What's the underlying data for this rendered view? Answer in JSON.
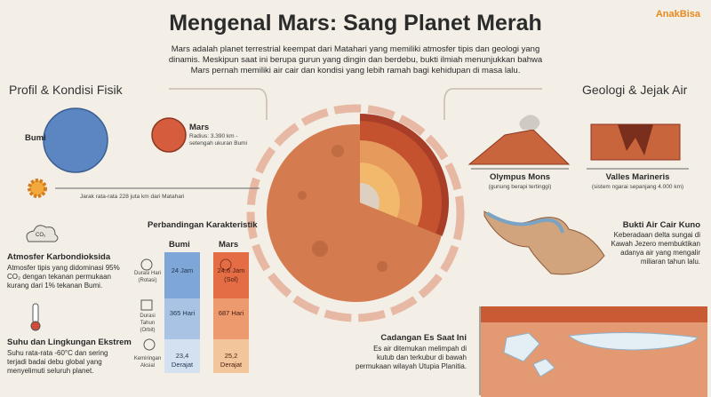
{
  "header": {
    "title": "Mengenal Mars: Sang Planet Merah",
    "logo": "AnakBisa",
    "intro": "Mars adalah planet terrestrial keempat dari Matahari yang memiliki atmosfer tipis dan geologi yang dinamis. Meskipun saat ini berupa gurun yang dingin dan berdebu, bukti ilmiah menunjukkan bahwa Mars pernah memiliki air cair dan kondisi yang lebih ramah bagi kehidupan di masa lalu."
  },
  "left": {
    "heading": "Profil & Kondisi Fisik",
    "earth_label": "Bumi",
    "mars_label": "Mars",
    "mars_radius": "Radius: 3.390 km - setengah ukuran Bumi",
    "distance": "Jarak rata-rata 228 juta km dari Matahari",
    "co2_icon": "CO₂",
    "atmosphere": {
      "title": "Atmosfer Karbondioksida",
      "text": "Atmosfer tipis yang didominasi 95% CO₂ dengan tekanan permukaan kurang dari 1% tekanan Bumi."
    },
    "temperature": {
      "title": "Suhu dan Lingkungan Ekstrem",
      "text": "Suhu rata-rata -60°C dan sering terjadi badai debu global yang menyelimuti seluruh planet."
    }
  },
  "comparison": {
    "title": "Perbandingan Karakteristik",
    "columns": [
      "Bumi",
      "Mars"
    ],
    "rows": [
      [
        "Durasi Hari (Rotasi)",
        "24 Jam",
        "24,6 Jam (Sol)"
      ],
      [
        "Durasi Tahun (Orbit)",
        "365 Hari",
        "687 Hari"
      ],
      [
        "Kemiringan Aksial",
        "23,4 Derajat",
        "25,2 Derajat"
      ]
    ]
  },
  "right": {
    "heading": "Geologi & Jejak Air",
    "olympus": {
      "title": "Olympus Mons",
      "text": "(gunung berapi tertinggi)"
    },
    "valles": {
      "title": "Valles Marineris",
      "text": "(sistem ngarai sepanjang 4.000 km)"
    },
    "water": {
      "title": "Bukti Air Cair Kuno",
      "text": "Keberadaan delta sungai di Kawah Jezero membuktikan adanya air yang mengalir miliaran tahun lalu."
    },
    "ice": {
      "title": "Cadangan Es Saat Ini",
      "text": "Es air ditemukan melimpah di kutub dan terkubur di bawah permukaan wilayah Utupia Planitia."
    }
  }
}
